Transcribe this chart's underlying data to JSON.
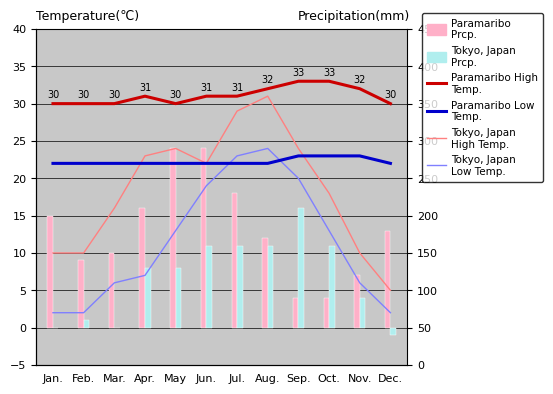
{
  "months": [
    "Jan.",
    "Feb.",
    "Mar.",
    "Apr.",
    "May",
    "Jun.",
    "Jul.",
    "Aug.",
    "Sep.",
    "Oct.",
    "Nov.",
    "Dec."
  ],
  "paramaribo_prcp": [
    15,
    9,
    10,
    16,
    24,
    24,
    18,
    12,
    4,
    4,
    7,
    13
  ],
  "tokyo_prcp": [
    0,
    1,
    0,
    8,
    8,
    11,
    11,
    11,
    16,
    11,
    4,
    -1
  ],
  "paramaribo_high": [
    30,
    30,
    30,
    31,
    30,
    31,
    31,
    32,
    33,
    33,
    32,
    30
  ],
  "paramaribo_low": [
    22,
    22,
    22,
    22,
    22,
    22,
    22,
    22,
    23,
    23,
    23,
    22
  ],
  "tokyo_high": [
    10,
    10,
    16,
    23,
    24,
    22,
    29,
    31,
    24,
    18,
    10,
    5
  ],
  "tokyo_low": [
    2,
    2,
    6,
    7,
    13,
    19,
    23,
    24,
    20,
    13,
    6,
    2
  ],
  "paramaribo_high_labels": [
    30,
    30,
    30,
    31,
    30,
    31,
    31,
    32,
    33,
    33,
    32,
    30
  ],
  "bar_pink": "#FFB0C8",
  "bar_cyan": "#B0EEEE",
  "line_para_high_color": "#CC0000",
  "line_para_low_color": "#0000CC",
  "line_tokyo_high_color": "#FF8080",
  "line_tokyo_low_color": "#8080FF",
  "title_left": "Temperature(℃)",
  "title_right": "Precipitation(mm)",
  "ylim_left": [
    -5,
    40
  ],
  "ylim_right": [
    0,
    450
  ],
  "yticks_left": [
    -5,
    0,
    5,
    10,
    15,
    20,
    25,
    30,
    35,
    40
  ],
  "yticks_right": [
    0,
    50,
    100,
    150,
    200,
    250,
    300,
    350,
    400,
    450
  ],
  "bg_color": "#C8C8C8",
  "grid_color": "#000000",
  "bar_width": 0.18,
  "legend_labels": [
    "Paramaribo\nPrcp.",
    "Tokyo, Japan\nPrcp.",
    "Paramaribo High\nTemp.",
    "Paramaribo Low\nTemp.",
    "Tokyo, Japan\nHigh Temp.",
    "Tokyo, Japan\nLow Temp."
  ]
}
